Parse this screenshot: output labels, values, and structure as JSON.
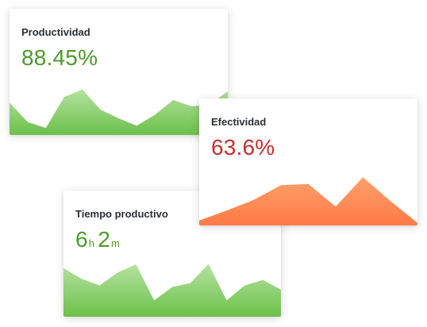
{
  "colors": {
    "green": "#4c9a2a",
    "red": "#c62f2f",
    "green_fill_top": "#b5e3a0",
    "green_fill_bottom": "#6cc04a",
    "orange_fill_top": "#ffa06b",
    "orange_fill_bottom": "#ff7a45"
  },
  "cards": [
    {
      "title": "Productividad",
      "value": "88.45%",
      "value_color": "green",
      "sparkline": [
        0.7,
        0.28,
        0.15,
        0.82,
        0.99,
        0.55,
        0.36,
        0.2,
        0.44,
        0.76,
        0.62,
        0.66,
        0.95
      ]
    },
    {
      "title": "Efectividad",
      "value": "63.6%",
      "value_color": "red",
      "sparkline": [
        0.1,
        0.3,
        0.52,
        0.82,
        0.84,
        0.38,
        0.98,
        0.5,
        0.05
      ]
    },
    {
      "title": "Tiempo productivo",
      "hours": "6",
      "hours_unit": "h",
      "minutes": "2",
      "minutes_unit": "m",
      "value_color": "green",
      "sparkline": [
        0.9,
        0.7,
        0.58,
        0.82,
        0.97,
        0.3,
        0.55,
        0.62,
        0.98,
        0.3,
        0.58,
        0.68,
        0.5
      ]
    }
  ]
}
